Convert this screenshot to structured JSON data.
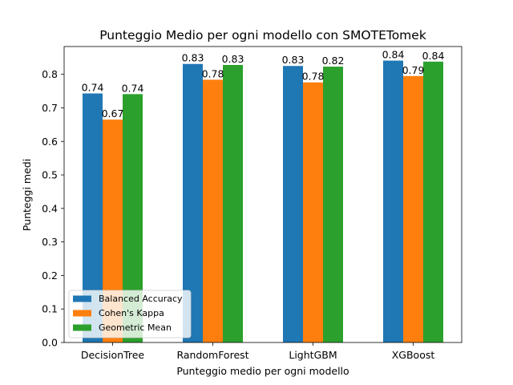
{
  "chart_data": {
    "type": "bar",
    "title": "Punteggio Medio per ogni modello con SMOTETomek",
    "xlabel": "Punteggio medio per ogni modello",
    "ylabel": "Punteggi medi",
    "categories": [
      "DecisionTree",
      "RandomForest",
      "LightGBM",
      "XGBoost"
    ],
    "series": [
      {
        "name": "Balanced Accuracy",
        "color": "#1f77b4",
        "values": [
          0.743,
          0.831,
          0.825,
          0.841
        ],
        "labels": [
          "0.74",
          "0.83",
          "0.83",
          "0.84"
        ]
      },
      {
        "name": "Cohen's Kappa",
        "color": "#ff7f0e",
        "values": [
          0.665,
          0.784,
          0.776,
          0.795
        ],
        "labels": [
          "0.67",
          "0.78",
          "0.78",
          "0.79"
        ]
      },
      {
        "name": "Geometric Mean",
        "color": "#2ca02c",
        "values": [
          0.741,
          0.828,
          0.823,
          0.838
        ],
        "labels": [
          "0.74",
          "0.83",
          "0.82",
          "0.84"
        ]
      }
    ],
    "yticks": [
      "0.0",
      "0.1",
      "0.2",
      "0.3",
      "0.4",
      "0.5",
      "0.6",
      "0.7",
      "0.8"
    ],
    "ylim": [
      0,
      0.883
    ],
    "grid": false,
    "legend_position": "lower-left"
  }
}
